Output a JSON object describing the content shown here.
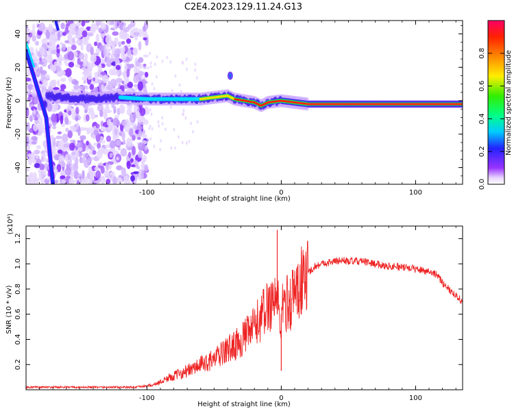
{
  "title": "C2E4.2023.129.11.24.G13",
  "colorbar": {
    "label": "Normalized spectral amplitude",
    "ticks": [
      "0.0",
      "0.2",
      "0.4",
      "0.6",
      "0.8"
    ],
    "tick_values": [
      0.0,
      0.2,
      0.4,
      0.6,
      0.8
    ],
    "range": [
      0,
      1
    ]
  },
  "chart_data": [
    {
      "type": "heatmap",
      "xlabel": "Height of straight line (km)",
      "ylabel": "Frequency (Hz)",
      "xlim": [
        -190,
        135
      ],
      "ylim": [
        -50,
        48
      ],
      "x_ticks": [
        -100,
        0,
        100
      ],
      "x_tick_labels": [
        "-100",
        "0",
        "100"
      ],
      "y_ticks": [
        -40,
        -20,
        0,
        20,
        40
      ],
      "y_tick_labels": [
        "-40",
        "-20",
        "0",
        "20",
        "40"
      ],
      "colormap": "rainbow (purple-blue-cyan-green-yellow-red-magenta)",
      "features": {
        "ridge_center_hz": [
          [
            -175,
            3
          ],
          [
            -150,
            1
          ],
          [
            -120,
            2
          ],
          [
            -100,
            1
          ],
          [
            -80,
            1
          ],
          [
            -60,
            1
          ],
          [
            -50,
            2
          ],
          [
            -40,
            3
          ],
          [
            -35,
            1
          ],
          [
            -20,
            -1
          ],
          [
            -15,
            -3
          ],
          [
            -10,
            -1
          ],
          [
            0,
            0
          ],
          [
            10,
            -1
          ],
          [
            20,
            -2
          ],
          [
            50,
            -2
          ],
          [
            80,
            -2
          ],
          [
            95,
            -2
          ],
          [
            135,
            -2
          ]
        ],
        "diagonal_line": [
          [
            -190,
            30
          ],
          [
            -175,
            -10
          ],
          [
            -170,
            -50
          ]
        ],
        "noise_region_x": [
          -190,
          -100
        ]
      }
    },
    {
      "type": "line",
      "xlabel": "Height of straight line (km)",
      "ylabel": "SNR (10 * v/v)",
      "y_multiplier": "(x10⁴)",
      "xlim": [
        -190,
        135
      ],
      "ylim": [
        0.0,
        1.3
      ],
      "x_ticks": [
        -100,
        0,
        100
      ],
      "x_tick_labels": [
        "-100",
        "0",
        "100"
      ],
      "y_ticks": [
        0.2,
        0.4,
        0.6,
        0.8,
        1.0,
        1.2
      ],
      "y_tick_labels": [
        "0.2",
        "0.4",
        "0.6",
        "0.8",
        "1.0",
        "1.2"
      ],
      "series": [
        {
          "color": "#ee2222",
          "x": [
            -190,
            -170,
            -150,
            -130,
            -110,
            -100,
            -95,
            -90,
            -85,
            -80,
            -75,
            -70,
            -65,
            -60,
            -55,
            -50,
            -45,
            -40,
            -35,
            -30,
            -25,
            -20,
            -15,
            -10,
            -8,
            -5,
            -3,
            -1,
            0,
            3,
            6,
            10,
            15,
            20,
            25,
            30,
            35,
            40,
            45,
            50,
            55,
            60,
            65,
            70,
            75,
            80,
            85,
            90,
            95,
            100,
            105,
            110,
            115,
            120,
            125,
            130,
            135
          ],
          "values": [
            0.02,
            0.02,
            0.02,
            0.02,
            0.02,
            0.03,
            0.04,
            0.06,
            0.09,
            0.11,
            0.13,
            0.15,
            0.17,
            0.2,
            0.22,
            0.24,
            0.28,
            0.32,
            0.35,
            0.39,
            0.44,
            0.5,
            0.58,
            0.66,
            0.7,
            0.73,
            0.76,
            0.5,
            0.6,
            0.7,
            0.68,
            0.78,
            0.85,
            0.93,
            0.98,
            1.0,
            1.01,
            1.02,
            1.03,
            1.02,
            1.02,
            1.02,
            1.01,
            1.0,
            0.99,
            0.98,
            0.98,
            0.97,
            0.97,
            0.96,
            0.95,
            0.94,
            0.92,
            0.85,
            0.8,
            0.75,
            0.7
          ],
          "spikes": [
            [
              -3,
              1.27
            ],
            [
              0,
              0.15
            ],
            [
              12,
              0.98
            ],
            [
              15,
              1.1
            ]
          ]
        }
      ]
    }
  ]
}
